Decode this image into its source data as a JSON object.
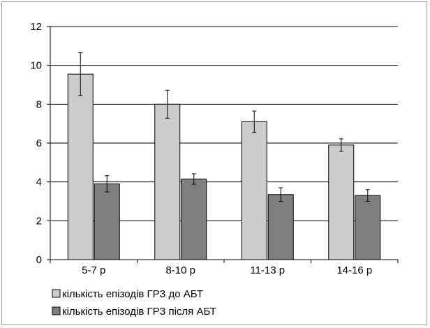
{
  "chart_data": {
    "type": "bar",
    "title": "",
    "xlabel": "",
    "ylabel": "",
    "categories": [
      "5-7 р",
      "8-10 р",
      "11-13 р",
      "14-16 р"
    ],
    "ylim": [
      0,
      12
    ],
    "yticks": [
      0,
      2,
      4,
      6,
      8,
      10,
      12
    ],
    "grid": true,
    "legend_position": "bottom",
    "series": [
      {
        "name": "кількість епізодів ГРЗ до АБТ",
        "color": "#cccccc",
        "values": [
          9.55,
          8.0,
          7.1,
          5.9
        ],
        "errors": [
          1.1,
          0.72,
          0.55,
          0.32
        ]
      },
      {
        "name": "кількість епізодів ГРЗ після АБТ",
        "color": "#7f7f7f",
        "values": [
          3.9,
          4.15,
          3.35,
          3.3
        ],
        "errors": [
          0.42,
          0.27,
          0.35,
          0.3
        ]
      }
    ]
  }
}
